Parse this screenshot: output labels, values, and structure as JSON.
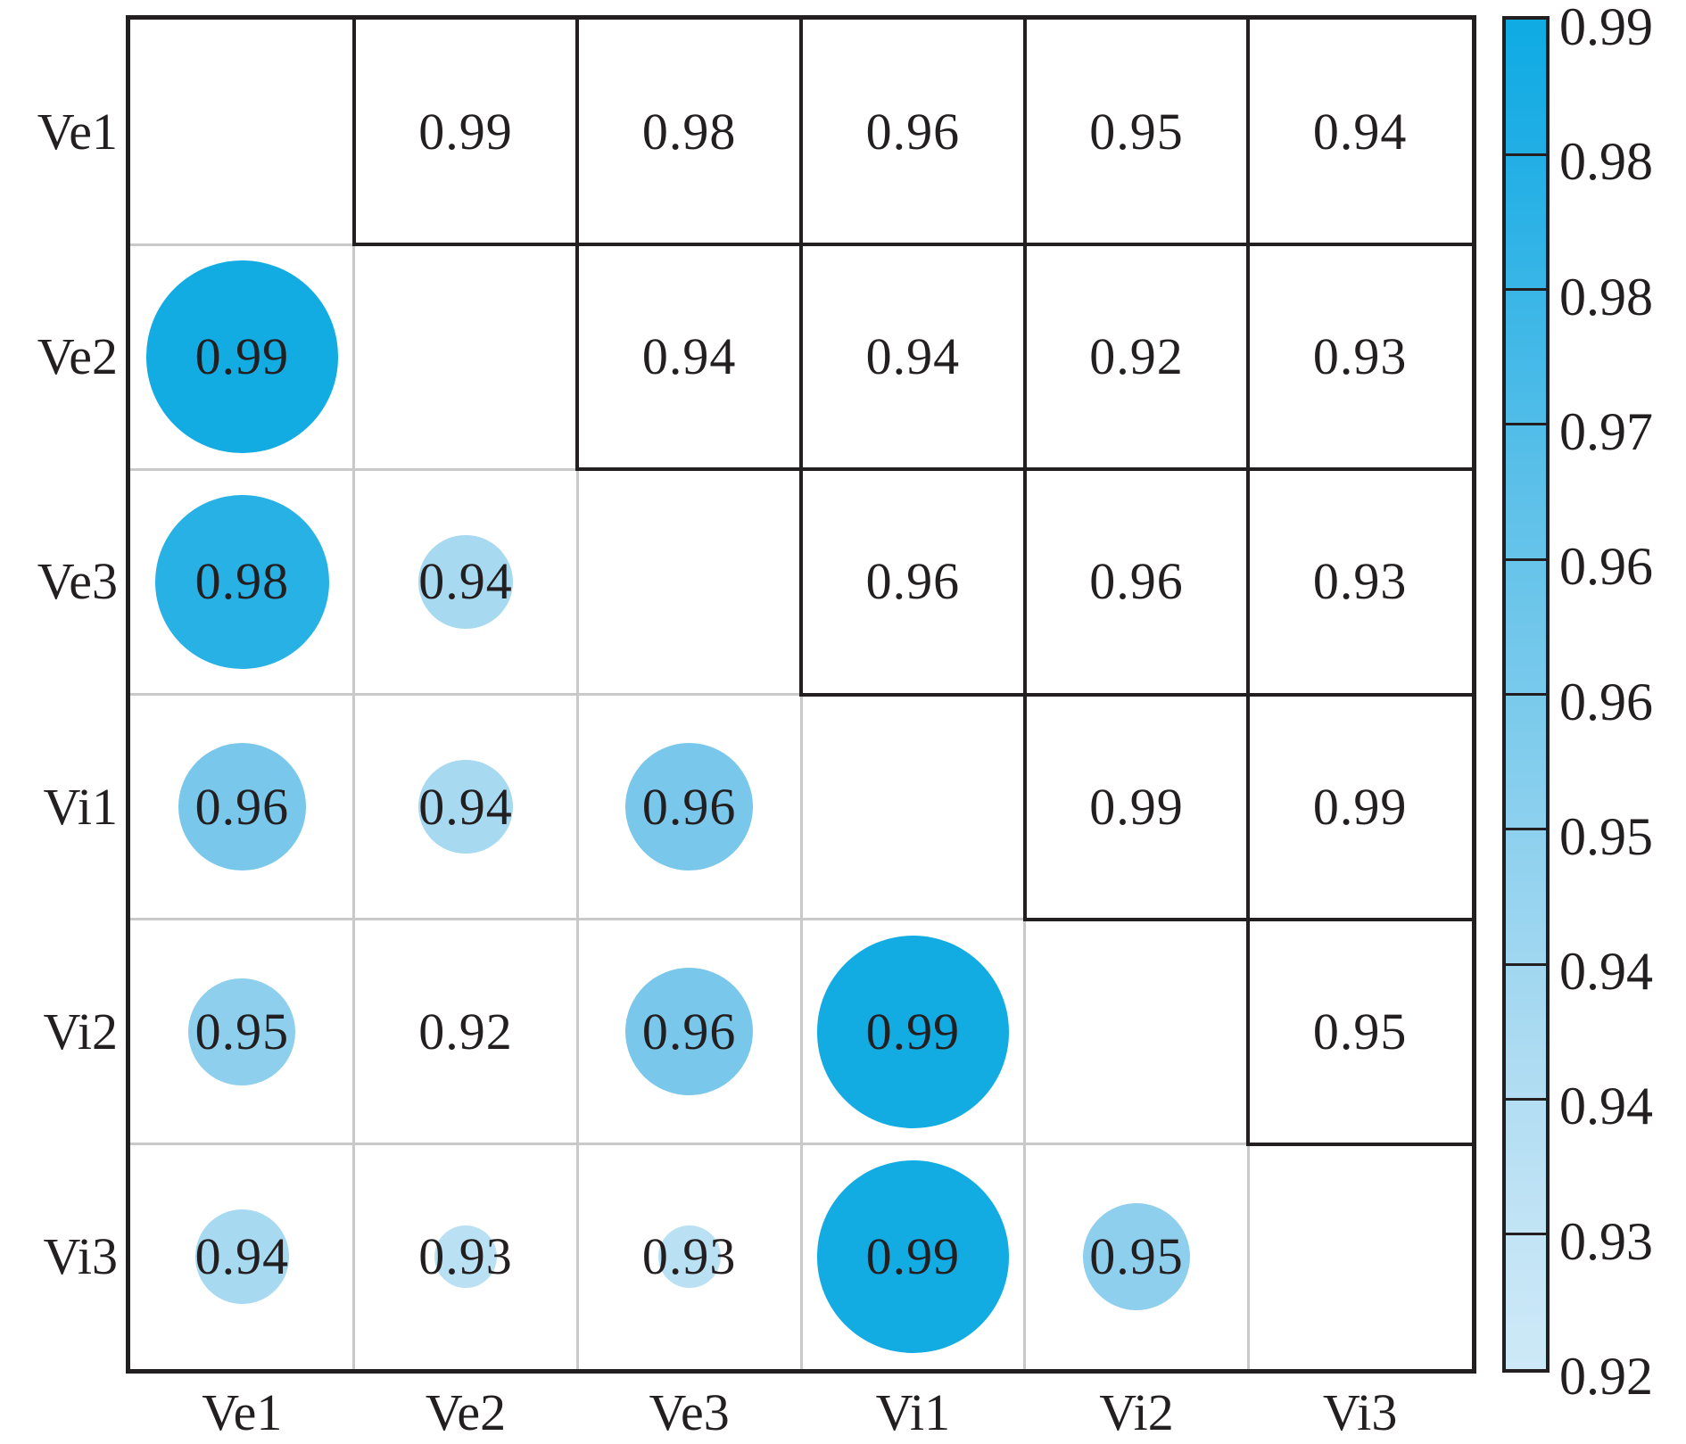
{
  "chart_data": {
    "type": "heatmap",
    "subtype": "correlation-matrix-with-circles",
    "title": "",
    "variables": [
      "Ve1",
      "Ve2",
      "Ve3",
      "Vi1",
      "Vi2",
      "Vi3"
    ],
    "matrix": [
      [
        null,
        0.99,
        0.98,
        0.96,
        0.95,
        0.94
      ],
      [
        0.99,
        null,
        0.94,
        0.94,
        0.92,
        0.93
      ],
      [
        0.98,
        0.94,
        null,
        0.96,
        0.96,
        0.93
      ],
      [
        0.96,
        0.94,
        0.96,
        null,
        0.99,
        0.99
      ],
      [
        0.95,
        0.92,
        0.96,
        0.99,
        null,
        0.95
      ],
      [
        0.94,
        0.93,
        0.93,
        0.99,
        0.95,
        null
      ]
    ],
    "upper_triangle_style": "numbers-in-black-boxes",
    "lower_triangle_style": "circles-sized-and-colored-by-value-with-numbers",
    "diagonal": "empty",
    "colorbar": {
      "position": "right",
      "orientation": "vertical",
      "range": [
        0.92,
        0.99
      ],
      "segments": 10,
      "tick_labels": [
        "0.99",
        "0.98",
        "0.98",
        "0.97",
        "0.96",
        "0.96",
        "0.95",
        "0.94",
        "0.94",
        "0.93",
        "0.92"
      ]
    },
    "value_styles": {
      "0.99": {
        "color": "#12ACE3",
        "diameter_frac": 0.86
      },
      "0.98": {
        "color": "#27B1E5",
        "diameter_frac": 0.78
      },
      "0.97": {
        "color": "#55BEE8",
        "diameter_frac": 0.66
      },
      "0.96": {
        "color": "#79C7EA",
        "diameter_frac": 0.57
      },
      "0.95": {
        "color": "#8DCFEC",
        "diameter_frac": 0.48
      },
      "0.94": {
        "color": "#A7D9F0",
        "diameter_frac": 0.42
      },
      "0.93": {
        "color": "#B9E0F3",
        "diameter_frac": 0.28
      },
      "0.92": {
        "color": "#CDE9F7",
        "diameter_frac": 0
      }
    },
    "colors": {
      "text": "#231F20",
      "grid_gray": "#c9c9c9",
      "grid_black": "#231F20",
      "background": "#ffffff"
    },
    "grid": "on",
    "legend_position": "right-colorbar"
  }
}
